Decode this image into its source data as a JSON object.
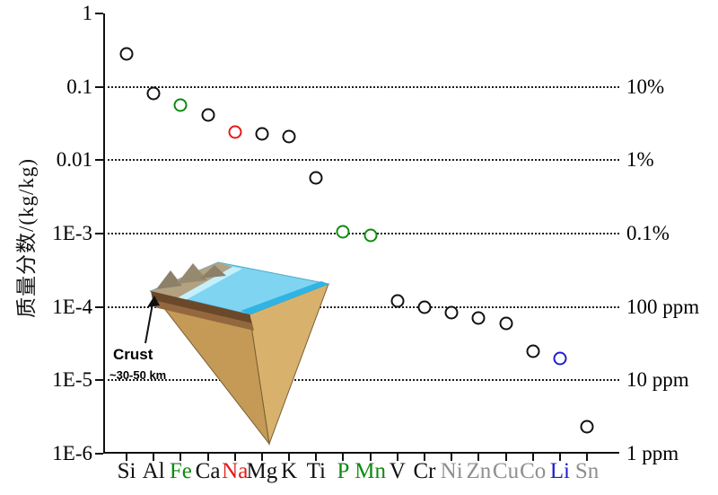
{
  "page": {
    "background": "#ffffff"
  },
  "y_axis_title": "质量分数/(kg/kg)",
  "inset": {
    "label": "Crust",
    "range_label": "~30-50 km"
  },
  "colors": {
    "black": "#111111",
    "green": "#0f8a0f",
    "red": "#e01b1b",
    "blue": "#1f1fd0",
    "gray": "#8f8f8f"
  },
  "chart_data": {
    "type": "scatter",
    "title": "",
    "ylabel": "质量分数/(kg/kg)",
    "xlabel": "",
    "y_scale": "log",
    "ylim": [
      1e-06,
      1
    ],
    "grid": {
      "horizontal_dotted_at": [
        0.1,
        0.01,
        0.001,
        0.0001,
        1e-05
      ]
    },
    "left_axis": {
      "tick_labels": [
        "1",
        "0.1",
        "0.01",
        "1E-3",
        "1E-4",
        "1E-5",
        "1E-6"
      ],
      "tick_values": [
        1,
        0.1,
        0.01,
        0.001,
        0.0001,
        1e-05,
        1e-06
      ]
    },
    "right_axis": {
      "tick_labels": [
        "10%",
        "1%",
        "0.1%",
        "100 ppm",
        "10 ppm",
        "1 ppm"
      ],
      "tick_values": [
        0.1,
        0.01,
        0.001,
        0.0001,
        1e-05,
        1e-06
      ]
    },
    "points": [
      {
        "element": "Si",
        "value": 0.28,
        "marker_color": "black",
        "label_color": "black"
      },
      {
        "element": "Al",
        "value": 0.082,
        "marker_color": "black",
        "label_color": "black"
      },
      {
        "element": "Fe",
        "value": 0.056,
        "marker_color": "green",
        "label_color": "green"
      },
      {
        "element": "Ca",
        "value": 0.041,
        "marker_color": "black",
        "label_color": "black"
      },
      {
        "element": "Na",
        "value": 0.024,
        "marker_color": "red",
        "label_color": "red"
      },
      {
        "element": "Mg",
        "value": 0.023,
        "marker_color": "black",
        "label_color": "black"
      },
      {
        "element": "K",
        "value": 0.021,
        "marker_color": "black",
        "label_color": "black"
      },
      {
        "element": "Ti",
        "value": 0.0057,
        "marker_color": "black",
        "label_color": "black"
      },
      {
        "element": "P",
        "value": 0.00105,
        "marker_color": "green",
        "label_color": "green"
      },
      {
        "element": "Mn",
        "value": 0.00095,
        "marker_color": "green",
        "label_color": "green"
      },
      {
        "element": "V",
        "value": 0.00012,
        "marker_color": "black",
        "label_color": "black"
      },
      {
        "element": "Cr",
        "value": 0.0001,
        "marker_color": "black",
        "label_color": "black"
      },
      {
        "element": "Ni",
        "value": 8.4e-05,
        "marker_color": "black",
        "label_color": "gray"
      },
      {
        "element": "Zn",
        "value": 7e-05,
        "marker_color": "black",
        "label_color": "gray"
      },
      {
        "element": "Cu",
        "value": 6e-05,
        "marker_color": "black",
        "label_color": "gray"
      },
      {
        "element": "Co",
        "value": 2.5e-05,
        "marker_color": "black",
        "label_color": "gray"
      },
      {
        "element": "Li",
        "value": 2e-05,
        "marker_color": "blue",
        "label_color": "blue"
      },
      {
        "element": "Sn",
        "value": 2.3e-06,
        "marker_color": "black",
        "label_color": "gray"
      }
    ]
  }
}
